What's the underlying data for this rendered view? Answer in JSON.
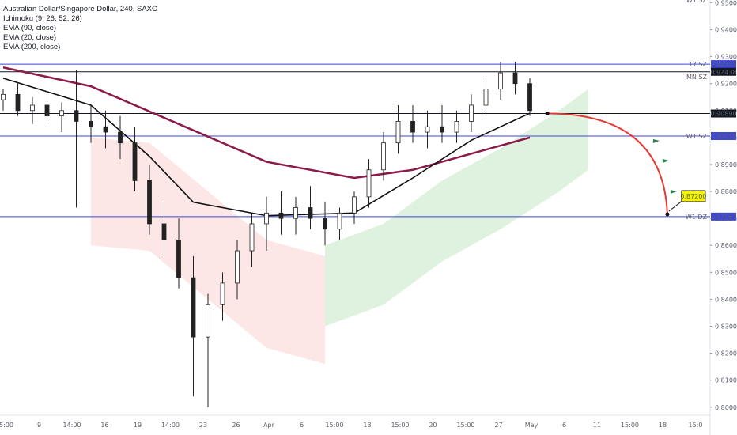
{
  "legend": {
    "title": "Australian Dollar/Singapore Dollar, 240, SAXO",
    "indicators": [
      "Ichimoku (9, 26, 52, 26)",
      "EMA (90, close)",
      "EMA (20, close)",
      "EMA (200, close)"
    ]
  },
  "chart_data": {
    "type": "candlestick",
    "symbol": "AUDSGD",
    "y_ticks": [
      "0.95000",
      "0.94000",
      "0.93000",
      "0.92000",
      "0.91000",
      "0.90000",
      "0.89000",
      "0.88000",
      "0.87000",
      "0.86000",
      "0.85000",
      "0.84000",
      "0.83000",
      "0.82000",
      "0.81000",
      "0.80000"
    ],
    "x_ticks": [
      "5:00",
      "9",
      "14:00",
      "16",
      "19",
      "14:00",
      "23",
      "26",
      "Apr",
      "6",
      "15:00",
      "13",
      "15:00",
      "20",
      "15:00",
      "27",
      "May",
      "6",
      "11",
      "15:00",
      "18",
      "15:0"
    ],
    "ylim": [
      0.797,
      0.951
    ],
    "levels": [
      {
        "price": 0.92721,
        "label": "1Y SZ",
        "price_label": "0.92721",
        "color": "#3d46d6"
      },
      {
        "price": 0.92438,
        "label": "MN SZ",
        "price_label": "0.92438",
        "color": "#131722"
      },
      {
        "price": 0.9089,
        "label": "",
        "price_label": "0.90890",
        "color": "#131722"
      },
      {
        "price": 0.90055,
        "label": "W1 SZ",
        "price_label": "0.90055",
        "color": "#3d46d6"
      },
      {
        "price": 0.87067,
        "label": "W1 DZ",
        "price_label": "0.87067",
        "color": "#3d46d6"
      }
    ],
    "top_label": "W1 SZ",
    "target_label": "0.87200",
    "price_path": [
      {
        "t": 0,
        "o": 0.914,
        "h": 0.918,
        "l": 0.91,
        "c": 0.916
      },
      {
        "t": 1,
        "o": 0.916,
        "h": 0.92,
        "l": 0.908,
        "c": 0.91
      },
      {
        "t": 2,
        "o": 0.91,
        "h": 0.915,
        "l": 0.905,
        "c": 0.912
      },
      {
        "t": 3,
        "o": 0.912,
        "h": 0.916,
        "l": 0.906,
        "c": 0.908
      },
      {
        "t": 4,
        "o": 0.908,
        "h": 0.913,
        "l": 0.902,
        "c": 0.91
      },
      {
        "t": 5,
        "o": 0.91,
        "h": 0.925,
        "l": 0.874,
        "c": 0.906
      },
      {
        "t": 6,
        "o": 0.906,
        "h": 0.912,
        "l": 0.898,
        "c": 0.904
      },
      {
        "t": 7,
        "o": 0.904,
        "h": 0.91,
        "l": 0.896,
        "c": 0.902
      },
      {
        "t": 8,
        "o": 0.902,
        "h": 0.908,
        "l": 0.892,
        "c": 0.898
      },
      {
        "t": 9,
        "o": 0.898,
        "h": 0.904,
        "l": 0.88,
        "c": 0.884
      },
      {
        "t": 10,
        "o": 0.884,
        "h": 0.89,
        "l": 0.864,
        "c": 0.868
      },
      {
        "t": 11,
        "o": 0.868,
        "h": 0.876,
        "l": 0.856,
        "c": 0.862
      },
      {
        "t": 12,
        "o": 0.862,
        "h": 0.87,
        "l": 0.844,
        "c": 0.848
      },
      {
        "t": 13,
        "o": 0.848,
        "h": 0.856,
        "l": 0.804,
        "c": 0.826
      },
      {
        "t": 14,
        "o": 0.826,
        "h": 0.842,
        "l": 0.8,
        "c": 0.838
      },
      {
        "t": 15,
        "o": 0.838,
        "h": 0.85,
        "l": 0.832,
        "c": 0.846
      },
      {
        "t": 16,
        "o": 0.846,
        "h": 0.862,
        "l": 0.84,
        "c": 0.858
      },
      {
        "t": 17,
        "o": 0.858,
        "h": 0.872,
        "l": 0.852,
        "c": 0.868
      },
      {
        "t": 18,
        "o": 0.868,
        "h": 0.878,
        "l": 0.858,
        "c": 0.872
      },
      {
        "t": 19,
        "o": 0.872,
        "h": 0.88,
        "l": 0.864,
        "c": 0.87
      },
      {
        "t": 20,
        "o": 0.87,
        "h": 0.878,
        "l": 0.864,
        "c": 0.874
      },
      {
        "t": 21,
        "o": 0.874,
        "h": 0.882,
        "l": 0.866,
        "c": 0.87
      },
      {
        "t": 22,
        "o": 0.87,
        "h": 0.876,
        "l": 0.86,
        "c": 0.866
      },
      {
        "t": 23,
        "o": 0.866,
        "h": 0.874,
        "l": 0.862,
        "c": 0.872
      },
      {
        "t": 24,
        "o": 0.872,
        "h": 0.88,
        "l": 0.868,
        "c": 0.878
      },
      {
        "t": 25,
        "o": 0.878,
        "h": 0.892,
        "l": 0.874,
        "c": 0.888
      },
      {
        "t": 26,
        "o": 0.888,
        "h": 0.902,
        "l": 0.884,
        "c": 0.898
      },
      {
        "t": 27,
        "o": 0.898,
        "h": 0.912,
        "l": 0.894,
        "c": 0.906
      },
      {
        "t": 28,
        "o": 0.906,
        "h": 0.912,
        "l": 0.898,
        "c": 0.902
      },
      {
        "t": 29,
        "o": 0.902,
        "h": 0.91,
        "l": 0.896,
        "c": 0.904
      },
      {
        "t": 30,
        "o": 0.904,
        "h": 0.912,
        "l": 0.898,
        "c": 0.902
      },
      {
        "t": 31,
        "o": 0.902,
        "h": 0.91,
        "l": 0.898,
        "c": 0.906
      },
      {
        "t": 32,
        "o": 0.906,
        "h": 0.916,
        "l": 0.902,
        "c": 0.912
      },
      {
        "t": 33,
        "o": 0.912,
        "h": 0.922,
        "l": 0.908,
        "c": 0.918
      },
      {
        "t": 34,
        "o": 0.918,
        "h": 0.928,
        "l": 0.914,
        "c": 0.924
      },
      {
        "t": 35,
        "o": 0.924,
        "h": 0.928,
        "l": 0.916,
        "c": 0.92
      },
      {
        "t": 36,
        "o": 0.92,
        "h": 0.922,
        "l": 0.908,
        "c": 0.91
      }
    ],
    "ema200": [
      [
        0,
        0.926
      ],
      [
        6,
        0.919
      ],
      [
        12,
        0.905
      ],
      [
        18,
        0.891
      ],
      [
        24,
        0.885
      ],
      [
        28,
        0.888
      ],
      [
        32,
        0.894
      ],
      [
        36,
        0.9
      ]
    ],
    "ema90": [
      [
        0,
        0.922
      ],
      [
        6,
        0.912
      ],
      [
        10,
        0.893
      ],
      [
        13,
        0.876
      ],
      [
        18,
        0.871
      ],
      [
        24,
        0.872
      ],
      [
        28,
        0.885
      ],
      [
        32,
        0.899
      ],
      [
        36,
        0.909
      ]
    ],
    "cloud_green": [
      [
        22,
        0.86
      ],
      [
        26,
        0.868
      ],
      [
        30,
        0.884
      ],
      [
        34,
        0.896
      ],
      [
        38,
        0.91
      ],
      [
        40,
        0.918
      ]
    ],
    "cloud_red": [
      [
        6,
        0.9
      ],
      [
        10,
        0.898
      ],
      [
        14,
        0.88
      ],
      [
        18,
        0.862
      ],
      [
        22,
        0.856
      ]
    ],
    "projection": {
      "from_t": 37.2,
      "from_price": 0.9089,
      "to_t": 45.4,
      "to_price": 0.8715
    }
  }
}
